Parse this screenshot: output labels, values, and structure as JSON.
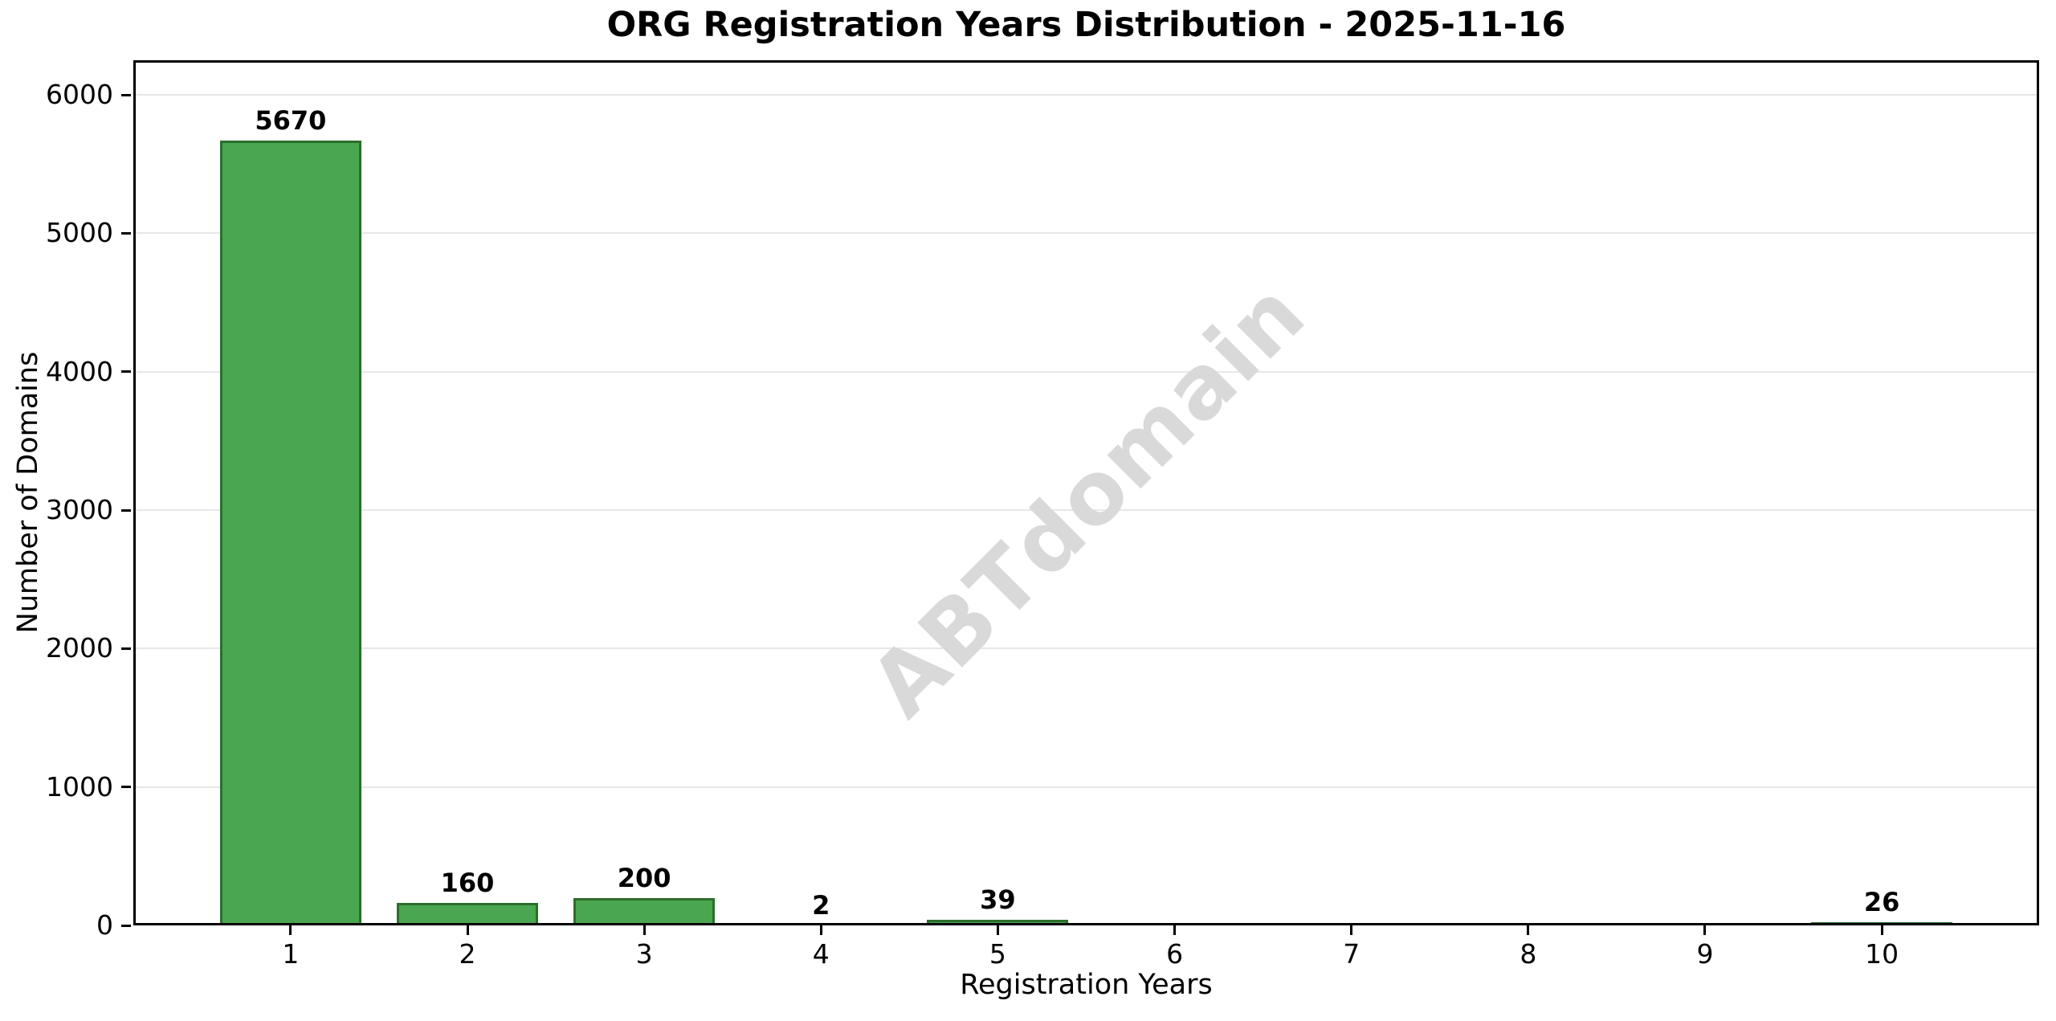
{
  "chart_data": {
    "type": "bar",
    "title": "ORG Registration Years Distribution - 2025-11-16",
    "xlabel": "Registration Years",
    "ylabel": "Number of Domains",
    "categories": [
      1,
      2,
      3,
      4,
      5,
      6,
      7,
      8,
      9,
      10
    ],
    "values": [
      5670,
      160,
      200,
      2,
      39,
      0,
      0,
      0,
      0,
      26
    ],
    "bar_labels": [
      "5670",
      "160",
      "200",
      "2",
      "39",
      "",
      "",
      "",
      "",
      "26"
    ],
    "yticks": [
      0,
      1000,
      2000,
      3000,
      4000,
      5000,
      6000
    ],
    "ytick_labels": [
      "0",
      "1000",
      "2000",
      "3000",
      "4000",
      "5000",
      "6000"
    ],
    "xtick_labels": [
      "1",
      "2",
      "3",
      "4",
      "5",
      "6",
      "7",
      "8",
      "9",
      "10"
    ],
    "ylim": [
      0,
      6250
    ],
    "xlim": [
      0.11,
      10.89
    ],
    "bar_width": 0.8,
    "grid": "horizontal",
    "legend_position": "none",
    "watermark": {
      "text": "ABTdomain",
      "rotation_deg": -45,
      "color": "#d9d9d9"
    },
    "style": {
      "bar_fill": "#4aa650",
      "bar_edge": "#2c6e2c",
      "grid_color": "#e7e7e7",
      "spine_color": "#000000",
      "text_color": "#000000",
      "background": "#ffffff"
    }
  }
}
